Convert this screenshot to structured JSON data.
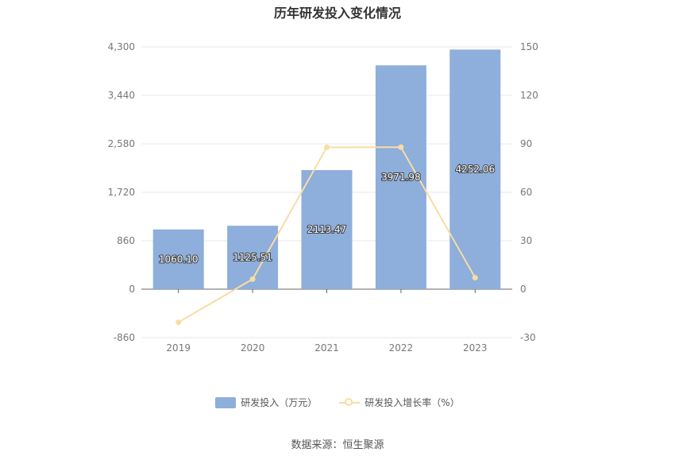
{
  "chart_data": {
    "type": "bar",
    "title": "历年研发投入变化情况",
    "categories": [
      "2019",
      "2020",
      "2021",
      "2022",
      "2023"
    ],
    "series": [
      {
        "name": "研发投入（万元）",
        "type": "bar",
        "axis": "left",
        "values": [
          1060.1,
          1125.51,
          2113.47,
          3971.98,
          4252.06
        ],
        "labels": [
          "1060.10",
          "1125.51",
          "2113.47",
          "3971.98",
          "4252.06"
        ],
        "color": "#8eaedb"
      },
      {
        "name": "研发投入增长率（%）",
        "type": "line",
        "axis": "right",
        "values": [
          -20.5,
          6.2,
          87.8,
          87.9,
          7.1
        ],
        "color": "#f9dca3"
      }
    ],
    "y_left": {
      "min": -860,
      "max": 4300,
      "ticks": [
        -860,
        0,
        860,
        1720,
        2580,
        3440,
        4300
      ],
      "tick_labels": [
        "-860",
        "0",
        "860",
        "1,720",
        "2,580",
        "3,440",
        "4,300"
      ]
    },
    "y_right": {
      "min": -30,
      "max": 150,
      "ticks": [
        -30,
        0,
        30,
        60,
        90,
        120,
        150
      ],
      "tick_labels": [
        "-30",
        "0",
        "30",
        "60",
        "90",
        "120",
        "150"
      ]
    },
    "grid": true,
    "legend_position": "bottom"
  },
  "legend": {
    "bar_label": "研发投入（万元）",
    "line_label": "研发投入增长率（%）"
  },
  "source": "数据来源：恒生聚源"
}
